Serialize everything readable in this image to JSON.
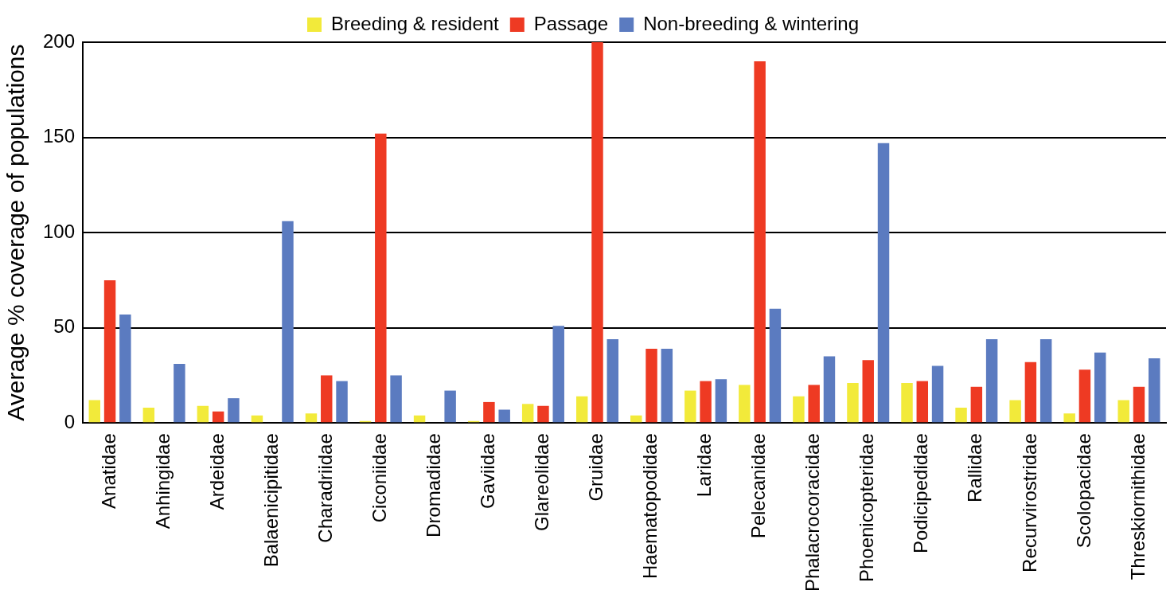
{
  "chart_data": {
    "type": "bar",
    "ylabel": "Average % coverage of populations",
    "categories": [
      "Anatidae",
      "Anhingidae",
      "Ardeidae",
      "Balaenicipitidae",
      "Charadriidae",
      "Ciconiidae",
      "Dromadidae",
      "Gaviidae",
      "Glareolidae",
      "Gruidae",
      "Haematopodidae",
      "Laridae",
      "Pelecanidae",
      "Phalacrocoracidae",
      "Phoenicopteridae",
      "Podicipedidae",
      "Rallidae",
      "Recurvirostridae",
      "Scolopacidae",
      "Threskiornithidae"
    ],
    "series": [
      {
        "name": "Breeding & resident",
        "color": "#f2ea3a",
        "values": [
          12,
          8,
          9,
          4,
          5,
          1,
          4,
          1,
          10,
          14,
          4,
          17,
          20,
          14,
          21,
          21,
          8,
          12,
          5,
          12
        ]
      },
      {
        "name": "Passage",
        "color": "#ee3a23",
        "values": [
          75,
          null,
          6,
          null,
          25,
          152,
          null,
          11,
          9,
          200,
          39,
          22,
          190,
          20,
          33,
          22,
          19,
          32,
          28,
          19
        ]
      },
      {
        "name": "Non-breeding & wintering",
        "color": "#5b7bc0",
        "values": [
          57,
          31,
          13,
          106,
          22,
          25,
          17,
          7,
          51,
          44,
          39,
          23,
          60,
          35,
          147,
          30,
          44,
          44,
          37,
          34
        ]
      }
    ],
    "ylim": [
      0,
      200
    ],
    "yticks": [
      0,
      50,
      100,
      150,
      200
    ],
    "grid": "y",
    "legend": "top"
  }
}
